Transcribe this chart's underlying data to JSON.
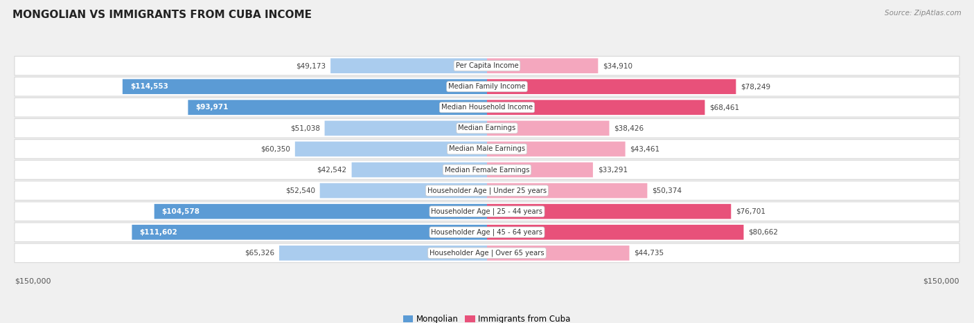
{
  "title": "MONGOLIAN VS IMMIGRANTS FROM CUBA INCOME",
  "source": "Source: ZipAtlas.com",
  "categories": [
    "Per Capita Income",
    "Median Family Income",
    "Median Household Income",
    "Median Earnings",
    "Median Male Earnings",
    "Median Female Earnings",
    "Householder Age | Under 25 years",
    "Householder Age | 25 - 44 years",
    "Householder Age | 45 - 64 years",
    "Householder Age | Over 65 years"
  ],
  "mongolian_values": [
    49173,
    114553,
    93971,
    51038,
    60350,
    42542,
    52540,
    104578,
    111602,
    65326
  ],
  "cuba_values": [
    34910,
    78249,
    68461,
    38426,
    43461,
    33291,
    50374,
    76701,
    80662,
    44735
  ],
  "mongolian_labels": [
    "$49,173",
    "$114,553",
    "$93,971",
    "$51,038",
    "$60,350",
    "$42,542",
    "$52,540",
    "$104,578",
    "$111,602",
    "$65,326"
  ],
  "cuba_labels": [
    "$34,910",
    "$78,249",
    "$68,461",
    "$38,426",
    "$43,461",
    "$33,291",
    "$50,374",
    "$76,701",
    "$80,662",
    "$44,735"
  ],
  "max_value": 150000,
  "mongolian_color_strong": "#5b9bd5",
  "mongolian_color_weak": "#aaccee",
  "cuba_color_strong": "#e8517a",
  "cuba_color_weak": "#f4a7be",
  "background_color": "#f0f0f0",
  "row_bg_color": "#ffffff",
  "row_border_color": "#d8d8d8",
  "legend_mongolian": "Mongolian",
  "legend_cuba": "Immigrants from Cuba",
  "x_label_left": "$150,000",
  "x_label_right": "$150,000",
  "mongolian_strong_threshold": 75000,
  "cuba_strong_threshold": 60000
}
